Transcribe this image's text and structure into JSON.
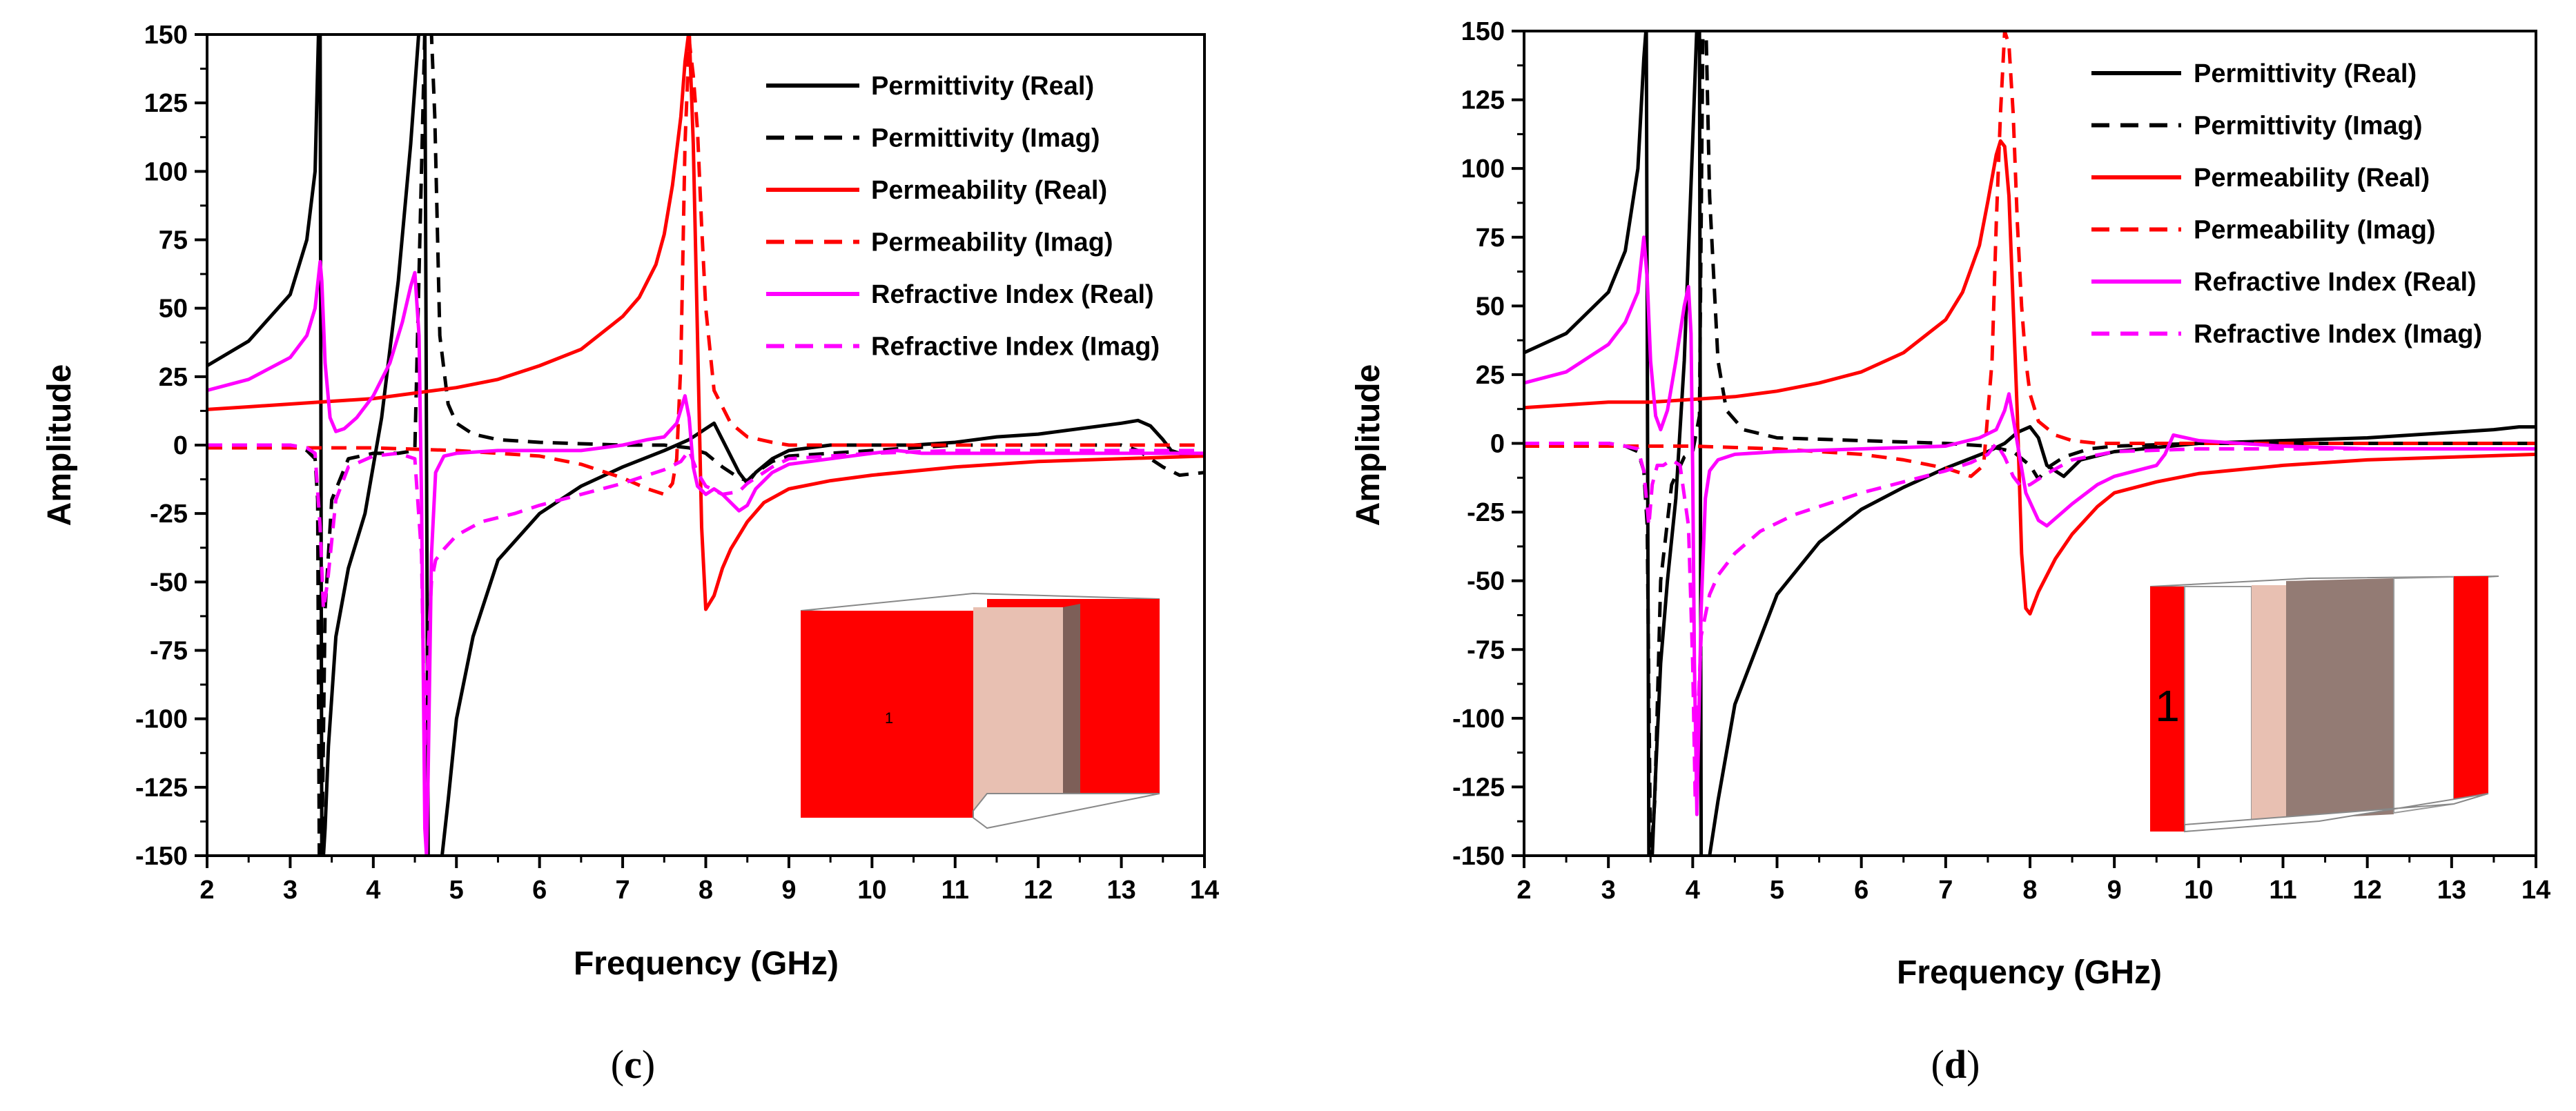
{
  "chart_data": [
    {
      "type": "line",
      "panel_label": "c",
      "xlabel": "Frequency (GHz)",
      "ylabel": "Amplitude",
      "xlim": [
        2,
        14
      ],
      "ylim": [
        -150,
        150
      ],
      "xticks": [
        "2",
        "3",
        "4",
        "5",
        "6",
        "7",
        "8",
        "9",
        "10",
        "11",
        "12",
        "13",
        "14"
      ],
      "yticks": [
        "150",
        "125",
        "100",
        "75",
        "50",
        "25",
        "0",
        "-25",
        "-50",
        "-75",
        "-100",
        "-125",
        "-150"
      ],
      "inset_label": "1",
      "series": [
        {
          "name": "Permittivity (Real)",
          "color": "#000000",
          "dash": "solid",
          "x": [
            2,
            2.5,
            3,
            3.2,
            3.3,
            3.34,
            3.36,
            3.38,
            3.4,
            3.42,
            3.46,
            3.55,
            3.7,
            3.9,
            4.1,
            4.3,
            4.45,
            4.55,
            4.62,
            4.66,
            4.7,
            4.76,
            4.82,
            4.9,
            5.0,
            5.2,
            5.5,
            6,
            6.5,
            7,
            7.5,
            7.8,
            8.0,
            8.1,
            8.2,
            8.4,
            8.5,
            8.6,
            8.8,
            9,
            9.5,
            10,
            10.5,
            11,
            11.5,
            12,
            12.5,
            13,
            13.2,
            13.35,
            13.5,
            13.6,
            13.8,
            14
          ],
          "y": [
            29,
            38,
            55,
            75,
            100,
            150,
            152,
            -152,
            -150,
            -140,
            -110,
            -70,
            -45,
            -25,
            10,
            60,
            110,
            152,
            152,
            -152,
            -152,
            -152,
            -152,
            -130,
            -100,
            -70,
            -42,
            -25,
            -15,
            -8,
            -2,
            2,
            6,
            8,
            2,
            -10,
            -14,
            -10,
            -5,
            -2,
            0,
            0,
            0,
            1,
            3,
            4,
            6,
            8,
            9,
            7,
            2,
            -2,
            -4,
            -4
          ]
        },
        {
          "name": "Permittivity (Imag)",
          "color": "#000000",
          "dash": "dashed",
          "x": [
            2,
            2.5,
            3,
            3.2,
            3.3,
            3.33,
            3.35,
            3.38,
            3.42,
            3.5,
            3.7,
            4.0,
            4.3,
            4.5,
            4.62,
            4.66,
            4.7,
            4.74,
            4.8,
            4.9,
            5.0,
            5.2,
            5.5,
            6,
            7,
            7.5,
            7.8,
            8.0,
            8.2,
            8.4,
            8.5,
            8.6,
            8.8,
            9,
            10,
            11,
            12,
            13,
            13.2,
            13.5,
            13.7,
            14
          ],
          "y": [
            0,
            0,
            0,
            -2,
            -5,
            -20,
            -152,
            -152,
            -60,
            -20,
            -5,
            -3,
            -3,
            -2,
            152,
            152,
            150,
            120,
            40,
            15,
            8,
            4,
            2,
            1,
            0,
            0,
            -1,
            -3,
            -8,
            -12,
            -13,
            -10,
            -6,
            -4,
            -2,
            0,
            0,
            0,
            -2,
            -8,
            -11,
            -10
          ]
        },
        {
          "name": "Permeability (Real)",
          "color": "#ff0000",
          "dash": "solid",
          "x": [
            2,
            2.5,
            3,
            3.5,
            4,
            4.5,
            5,
            5.5,
            6,
            6.5,
            7,
            7.2,
            7.4,
            7.5,
            7.6,
            7.7,
            7.75,
            7.8,
            7.85,
            7.9,
            7.95,
            8.0,
            8.1,
            8.2,
            8.3,
            8.5,
            8.7,
            9,
            9.5,
            10,
            11,
            12,
            13,
            14
          ],
          "y": [
            13,
            14,
            15,
            16,
            17,
            19,
            21,
            24,
            29,
            35,
            47,
            54,
            66,
            77,
            95,
            120,
            140,
            152,
            110,
            40,
            -30,
            -60,
            -55,
            -45,
            -38,
            -28,
            -21,
            -16,
            -13,
            -11,
            -8,
            -6,
            -5,
            -4
          ]
        },
        {
          "name": "Permeability (Imag)",
          "color": "#ff0000",
          "dash": "dashed",
          "x": [
            2,
            3,
            4,
            5,
            5.5,
            6,
            6.5,
            7,
            7.3,
            7.5,
            7.6,
            7.65,
            7.7,
            7.75,
            7.8,
            7.85,
            7.9,
            7.95,
            8.0,
            8.1,
            8.3,
            8.5,
            8.8,
            9,
            10,
            11,
            12,
            13,
            14
          ],
          "y": [
            -1,
            -1,
            -1,
            -2,
            -3,
            -4,
            -7,
            -12,
            -16,
            -18,
            -14,
            -5,
            30,
            110,
            148,
            135,
            115,
            80,
            50,
            20,
            8,
            3,
            1,
            0,
            0,
            0,
            0,
            0,
            0
          ]
        },
        {
          "name": "Refractive Index (Real)",
          "color": "#ff00ff",
          "dash": "solid",
          "x": [
            2,
            2.5,
            3,
            3.2,
            3.3,
            3.36,
            3.38,
            3.42,
            3.48,
            3.55,
            3.65,
            3.8,
            4.0,
            4.2,
            4.35,
            4.45,
            4.5,
            4.55,
            4.58,
            4.62,
            4.64,
            4.66,
            4.7,
            4.75,
            4.85,
            5.0,
            5.5,
            6,
            6.5,
            7,
            7.3,
            7.5,
            7.65,
            7.75,
            7.8,
            7.85,
            7.9,
            8.0,
            8.1,
            8.2,
            8.4,
            8.5,
            8.6,
            8.8,
            9,
            9.5,
            10,
            10.3,
            10.6,
            11,
            12,
            13,
            14
          ],
          "y": [
            20,
            24,
            32,
            40,
            50,
            67,
            60,
            30,
            10,
            5,
            6,
            10,
            18,
            30,
            45,
            58,
            63,
            40,
            -20,
            -140,
            -150,
            -120,
            -40,
            -10,
            -4,
            -3,
            -2,
            -2,
            -2,
            0,
            2,
            3,
            8,
            18,
            10,
            -8,
            -15,
            -18,
            -16,
            -18,
            -24,
            -22,
            -16,
            -10,
            -7,
            -5,
            -3,
            -2,
            -3,
            -3,
            -3,
            -3,
            -3
          ]
        },
        {
          "name": "Refractive Index (Imag)",
          "color": "#ff00ff",
          "dash": "dashed",
          "x": [
            2,
            3,
            3.2,
            3.3,
            3.36,
            3.4,
            3.45,
            3.55,
            3.7,
            4.0,
            4.3,
            4.5,
            4.58,
            4.62,
            4.66,
            4.7,
            4.75,
            4.85,
            5.0,
            5.3,
            5.7,
            6,
            6.5,
            7,
            7.3,
            7.5,
            7.7,
            7.8,
            7.9,
            8.0,
            8.2,
            8.4,
            8.5,
            8.8,
            9,
            10,
            11,
            12,
            13,
            14
          ],
          "y": [
            0,
            0,
            -1,
            -3,
            -30,
            -60,
            -50,
            -20,
            -8,
            -4,
            -3,
            -5,
            -40,
            -110,
            -75,
            -50,
            -42,
            -38,
            -33,
            -28,
            -25,
            -22,
            -18,
            -14,
            -11,
            -9,
            -6,
            -2,
            -10,
            -15,
            -18,
            -17,
            -14,
            -8,
            -5,
            -3,
            -2,
            -2,
            -2,
            -2
          ]
        }
      ]
    },
    {
      "type": "line",
      "panel_label": "d",
      "xlabel": "Frequency (GHz)",
      "ylabel": "Amplitude",
      "xlim": [
        2,
        14
      ],
      "ylim": [
        -150,
        150
      ],
      "xticks": [
        "2",
        "3",
        "4",
        "5",
        "6",
        "7",
        "8",
        "9",
        "10",
        "11",
        "12",
        "13",
        "14"
      ],
      "yticks": [
        "150",
        "125",
        "100",
        "75",
        "50",
        "25",
        "0",
        "-25",
        "-50",
        "-75",
        "-100",
        "-125",
        "-150"
      ],
      "inset_label": "1",
      "series": [
        {
          "name": "Permittivity (Real)",
          "color": "#000000",
          "dash": "solid",
          "x": [
            2,
            2.5,
            3,
            3.2,
            3.35,
            3.42,
            3.45,
            3.48,
            3.52,
            3.56,
            3.62,
            3.7,
            3.8,
            3.9,
            4.0,
            4.05,
            4.08,
            4.1,
            4.14,
            4.2,
            4.3,
            4.5,
            5,
            5.5,
            6,
            6.5,
            7,
            7.5,
            7.7,
            7.85,
            8.0,
            8.1,
            8.2,
            8.4,
            8.6,
            9,
            10,
            11,
            12,
            13,
            13.5,
            13.8,
            14
          ],
          "y": [
            33,
            40,
            55,
            70,
            100,
            140,
            152,
            -152,
            -150,
            -120,
            -80,
            -50,
            -20,
            30,
            110,
            152,
            152,
            -152,
            -152,
            -150,
            -130,
            -95,
            -55,
            -36,
            -24,
            -16,
            -9,
            -3,
            0,
            4,
            6,
            2,
            -8,
            -12,
            -6,
            -3,
            0,
            1,
            2,
            4,
            5,
            6,
            6
          ]
        },
        {
          "name": "Permittivity (Imag)",
          "color": "#000000",
          "dash": "dashed",
          "x": [
            2,
            2.5,
            3,
            3.2,
            3.35,
            3.42,
            3.46,
            3.5,
            3.55,
            3.62,
            3.75,
            3.9,
            4.0,
            4.08,
            4.12,
            4.16,
            4.2,
            4.3,
            4.4,
            4.6,
            5,
            6,
            7,
            7.5,
            7.8,
            8.0,
            8.1,
            8.2,
            8.4,
            8.7,
            9,
            10,
            11,
            12,
            13,
            14
          ],
          "y": [
            0,
            0,
            0,
            -1,
            -3,
            -10,
            -30,
            -152,
            -130,
            -50,
            -15,
            -5,
            -3,
            10,
            148,
            148,
            90,
            30,
            12,
            5,
            2,
            1,
            0,
            -1,
            -3,
            -8,
            -13,
            -9,
            -5,
            -2,
            -1,
            0,
            0,
            0,
            0,
            0
          ]
        },
        {
          "name": "Permeability (Real)",
          "color": "#ff0000",
          "dash": "solid",
          "x": [
            2,
            2.5,
            3,
            3.5,
            4,
            4.5,
            5,
            5.5,
            6,
            6.5,
            7,
            7.2,
            7.4,
            7.5,
            7.6,
            7.65,
            7.7,
            7.75,
            7.8,
            7.85,
            7.9,
            7.95,
            8.0,
            8.1,
            8.3,
            8.5,
            8.8,
            9,
            9.5,
            10,
            11,
            12,
            13,
            14
          ],
          "y": [
            13,
            14,
            15,
            15,
            16,
            17,
            19,
            22,
            26,
            33,
            45,
            55,
            72,
            88,
            105,
            110,
            108,
            90,
            50,
            10,
            -40,
            -60,
            -62,
            -54,
            -42,
            -33,
            -23,
            -18,
            -14,
            -11,
            -8,
            -6,
            -5,
            -4
          ]
        },
        {
          "name": "Permeability (Imag)",
          "color": "#ff0000",
          "dash": "dashed",
          "x": [
            2,
            3,
            4,
            5,
            5.5,
            6,
            6.5,
            7,
            7.3,
            7.45,
            7.55,
            7.6,
            7.65,
            7.7,
            7.75,
            7.8,
            7.85,
            7.9,
            7.95,
            8.0,
            8.1,
            8.3,
            8.5,
            8.8,
            9,
            10,
            11,
            12,
            13,
            14
          ],
          "y": [
            -1,
            -1,
            -1,
            -2,
            -3,
            -4,
            -6,
            -9,
            -12,
            -8,
            30,
            80,
            120,
            150,
            145,
            120,
            80,
            50,
            30,
            18,
            8,
            3,
            1,
            0,
            0,
            0,
            0,
            0,
            0,
            0
          ]
        },
        {
          "name": "Refractive Index (Real)",
          "color": "#ff00ff",
          "dash": "solid",
          "x": [
            2,
            2.5,
            3,
            3.2,
            3.35,
            3.42,
            3.46,
            3.5,
            3.56,
            3.62,
            3.7,
            3.8,
            3.9,
            3.95,
            3.98,
            4.0,
            4.02,
            4.05,
            4.1,
            4.15,
            4.2,
            4.3,
            4.5,
            5,
            6,
            7,
            7.4,
            7.6,
            7.7,
            7.75,
            7.85,
            7.95,
            8.1,
            8.2,
            8.5,
            8.8,
            9,
            9.5,
            9.6,
            9.7,
            10,
            11,
            12,
            13,
            14
          ],
          "y": [
            22,
            26,
            36,
            44,
            55,
            75,
            60,
            30,
            10,
            5,
            12,
            30,
            50,
            57,
            40,
            -10,
            -80,
            -135,
            -60,
            -20,
            -10,
            -6,
            -4,
            -3,
            -2,
            -1,
            2,
            5,
            12,
            18,
            0,
            -18,
            -28,
            -30,
            -22,
            -15,
            -12,
            -8,
            -4,
            3,
            1,
            -1,
            -2,
            -2,
            -2
          ]
        },
        {
          "name": "Refractive Index (Imag)",
          "color": "#ff00ff",
          "dash": "dashed",
          "x": [
            2,
            3,
            3.2,
            3.35,
            3.42,
            3.48,
            3.52,
            3.58,
            3.65,
            3.75,
            3.85,
            3.95,
            4.0,
            4.03,
            4.06,
            4.1,
            4.2,
            4.3,
            4.5,
            4.8,
            5.2,
            5.7,
            6,
            6.5,
            7,
            7.3,
            7.5,
            7.6,
            7.7,
            7.8,
            7.9,
            8.0,
            8.2,
            8.5,
            9,
            10,
            11,
            12,
            13,
            14
          ],
          "y": [
            0,
            0,
            -1,
            -2,
            -10,
            -30,
            -15,
            -8,
            -8,
            -6,
            -8,
            -30,
            -80,
            -130,
            -100,
            -70,
            -55,
            -48,
            -40,
            -32,
            -26,
            -21,
            -18,
            -14,
            -10,
            -7,
            -4,
            0,
            -5,
            -12,
            -16,
            -15,
            -11,
            -6,
            -3,
            -2,
            -2,
            -2,
            -2,
            -2
          ]
        }
      ]
    }
  ]
}
